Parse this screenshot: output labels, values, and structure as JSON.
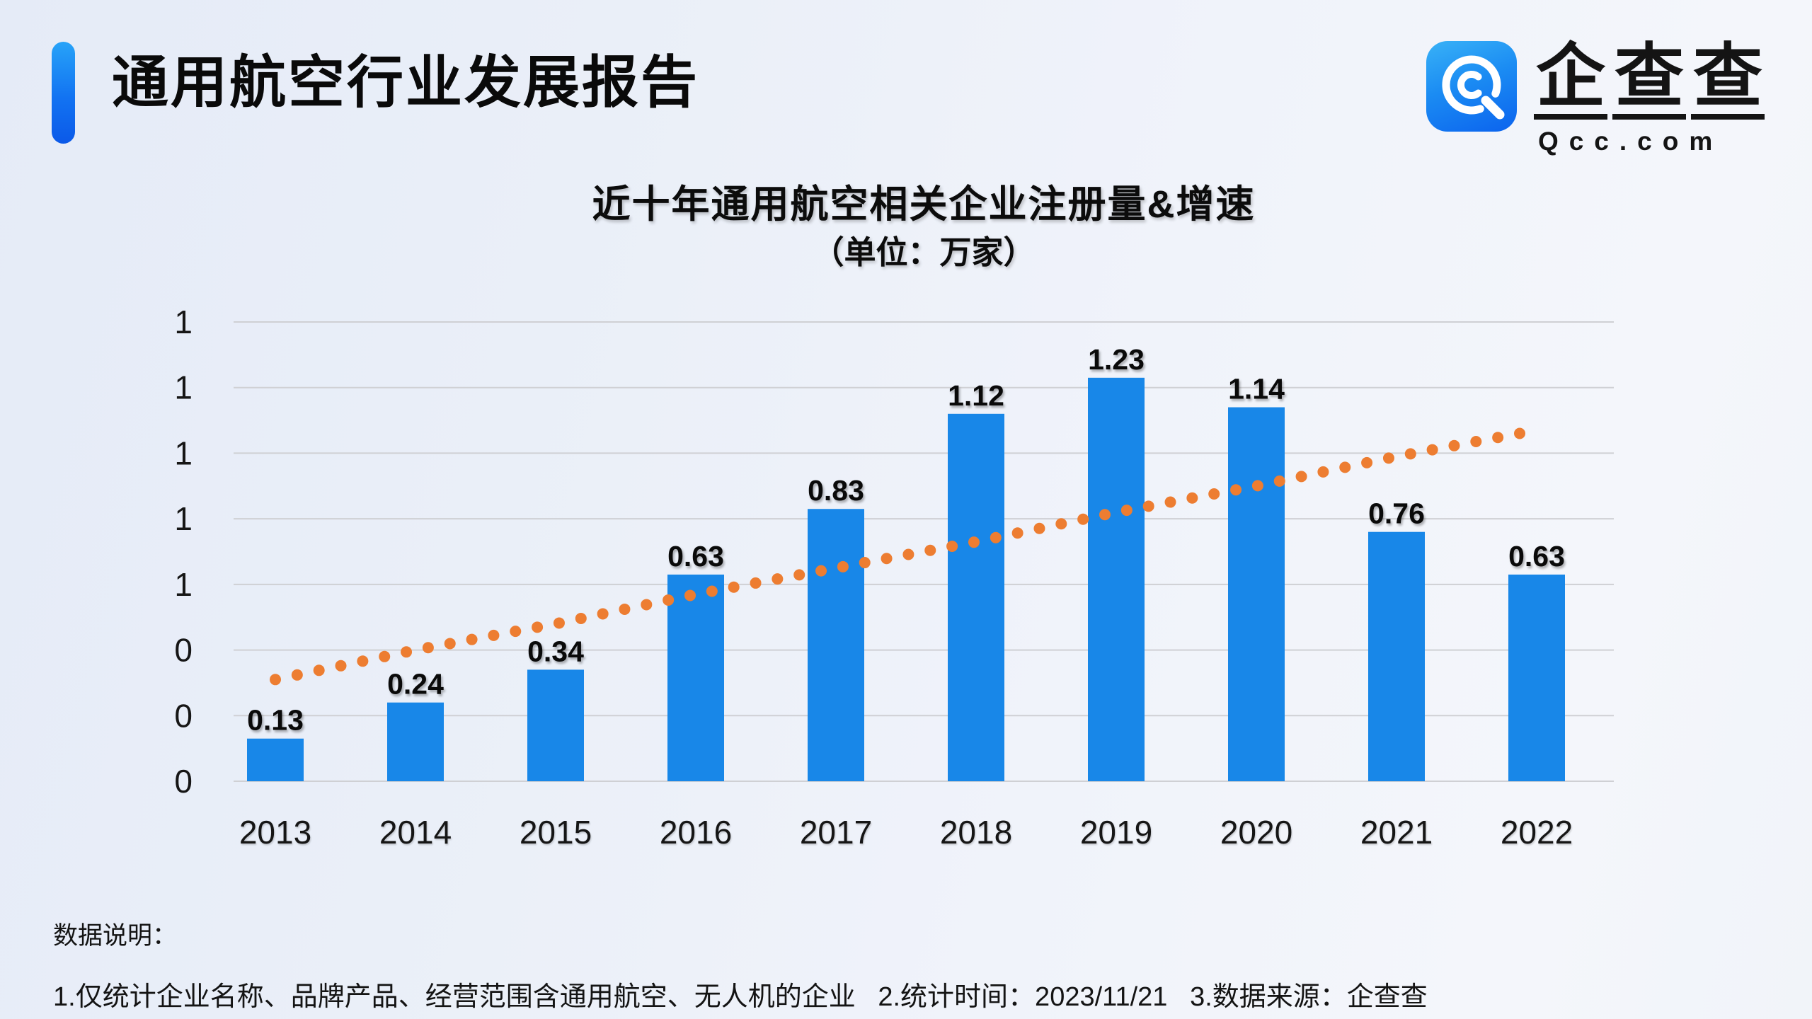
{
  "header": {
    "title": "通用航空行业发展报告"
  },
  "logo": {
    "icon": "qcc-magnifier-q-icon",
    "chars": [
      "企",
      "查",
      "查"
    ],
    "domain": "Qcc.com",
    "icon_color_top": "#39b2f7",
    "icon_color_bottom": "#0b63ee"
  },
  "chart": {
    "title": "近十年通用航空相关企业注册量&增速",
    "subtitle": "（单位：万家）"
  },
  "chart_data": {
    "type": "bar",
    "title": "近十年通用航空相关企业注册量&增速",
    "subtitle": "（单位：万家）",
    "unit": "万家",
    "categories": [
      "2013",
      "2014",
      "2015",
      "2016",
      "2017",
      "2018",
      "2019",
      "2020",
      "2021",
      "2022"
    ],
    "series": [
      {
        "name": "注册量",
        "type": "bar",
        "color": "#1887E8",
        "values": [
          0.13,
          0.24,
          0.34,
          0.63,
          0.83,
          1.12,
          1.23,
          1.14,
          0.76,
          0.63
        ],
        "labels": [
          "0.13",
          "0.24",
          "0.34",
          "0.63",
          "0.83",
          "1.12",
          "1.23",
          "1.14",
          "0.76",
          "0.63"
        ]
      },
      {
        "name": "增速",
        "type": "dotted-line",
        "color": "#ED7D31",
        "values_est_left_axis": [
          0.31,
          0.4,
          0.48,
          0.57,
          0.65,
          0.73,
          0.82,
          0.9,
          0.99,
          1.07
        ],
        "note": "orange dotted trend line rising roughly linearly left-to-right; no secondary-axis tick labels shown; line ends just before the 2022 bar center"
      }
    ],
    "ylim": [
      0,
      1.4
    ],
    "ytick_step": 0.2,
    "ytick_labels_top_to_bottom": [
      "1",
      "1",
      "1",
      "1",
      "1",
      "0",
      "0",
      "0"
    ],
    "grid": true,
    "gridline_color": "#cfd0d4",
    "legend": "none"
  },
  "notes": {
    "heading": "数据说明：",
    "line": "1.仅统计企业名称、品牌产品、经营范围含通用航空、无人机的企业   2.统计时间：2023/11/21   3.数据来源：企查查"
  }
}
